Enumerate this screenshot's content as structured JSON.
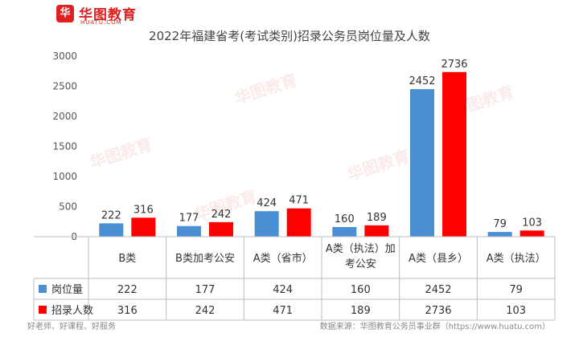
{
  "brand": {
    "name": "华图教育",
    "sub": "HUATU.COM",
    "mark": "华"
  },
  "chart_data": {
    "type": "bar",
    "title": "2022年福建省考(考试类别)招录公务员岗位量及人数",
    "categories": [
      "B类",
      "B类加考公安",
      "A类（省市）",
      "A类（执法）加考公安",
      "A类（县乡）",
      "A类（执法）"
    ],
    "series": [
      {
        "name": "岗位量",
        "color": "#4a8fd4",
        "values": [
          222,
          177,
          424,
          160,
          2452,
          79
        ]
      },
      {
        "name": "招录人数",
        "color": "#ff0000",
        "values": [
          316,
          242,
          471,
          189,
          2736,
          103
        ]
      }
    ],
    "ylim": [
      0,
      3000
    ],
    "yticks": [
      0,
      500,
      1000,
      1500,
      2000,
      2500,
      3000
    ],
    "grid": false,
    "legend": "data-table"
  },
  "footer": {
    "left": "好老师、好课程、好服务",
    "right": "数据来源：华图教育公务员事业群（https://www.huatu.com）"
  }
}
